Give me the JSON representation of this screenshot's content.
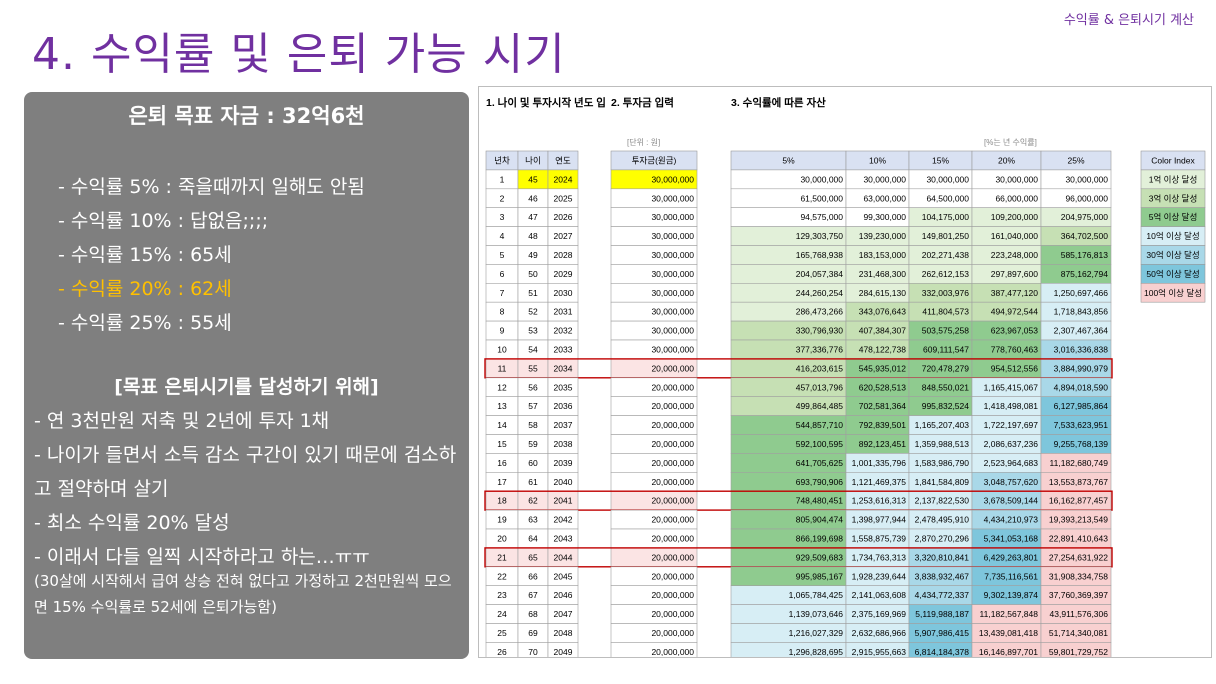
{
  "header_label": "수익률 & 은퇴시기 계산",
  "title": "4. 수익률 및 은퇴 가능 시기",
  "panel": {
    "goal": "은퇴 목표 자금 : 32억6천",
    "rates": [
      {
        "text": "- 수익률   5% : 죽을때까지 일해도 안됨",
        "highlight": false
      },
      {
        "text": "- 수익률 10% : 답없음;;;;",
        "highlight": false
      },
      {
        "text": "- 수익률 15% : 65세",
        "highlight": false
      },
      {
        "text": "- 수익률 20% : 62세",
        "highlight": true
      },
      {
        "text": "- 수익률 25% : 55세",
        "highlight": false
      }
    ],
    "section_title": "[목표 은퇴시기를 달성하기 위해]",
    "bullets": [
      "- 연 3천만원 저축 및 2년에 투자 1채",
      "- 나이가 들면서 소득 감소 구간이 있기 때문에 검소하고 절약하며 살기",
      "- 최소 수익률 20% 달성",
      "-    이래서 다들 일찍 시작하라고 하는…ㅠㅠ"
    ],
    "note": "(30살에 시작해서 급여 상승 전혀 없다고 가정하고 2천만원씩 모으면 15% 수익률로 52세에 은퇴가능함)"
  },
  "sheet": {
    "sec1": "1. 나이 및 투자시작 년도 입",
    "sec2": "2. 투자금 입력",
    "sec3": "3. 수익률에 따른 자산",
    "unit_won": "[단위 : 원]",
    "unit_rate": "[%는 년 수익률]",
    "headers": {
      "year_no": "년차",
      "age": "나이",
      "year": "연도",
      "invest": "투자금(원금)"
    },
    "rates": [
      "5%",
      "10%",
      "15%",
      "20%",
      "25%"
    ],
    "rows": [
      [
        1,
        45,
        2024,
        "30,000,000",
        "30,000,000",
        "30,000,000",
        "30,000,000",
        "30,000,000",
        "30,000,000"
      ],
      [
        2,
        46,
        2025,
        "30,000,000",
        "61,500,000",
        "63,000,000",
        "64,500,000",
        "66,000,000",
        "96,000,000"
      ],
      [
        3,
        47,
        2026,
        "30,000,000",
        "94,575,000",
        "99,300,000",
        "104,175,000",
        "109,200,000",
        "204,975,000"
      ],
      [
        4,
        48,
        2027,
        "30,000,000",
        "129,303,750",
        "139,230,000",
        "149,801,250",
        "161,040,000",
        "364,702,500"
      ],
      [
        5,
        49,
        2028,
        "30,000,000",
        "165,768,938",
        "183,153,000",
        "202,271,438",
        "223,248,000",
        "585,176,813"
      ],
      [
        6,
        50,
        2029,
        "30,000,000",
        "204,057,384",
        "231,468,300",
        "262,612,153",
        "297,897,600",
        "875,162,794"
      ],
      [
        7,
        51,
        2030,
        "30,000,000",
        "244,260,254",
        "284,615,130",
        "332,003,976",
        "387,477,120",
        "1,250,697,466"
      ],
      [
        8,
        52,
        2031,
        "30,000,000",
        "286,473,266",
        "343,076,643",
        "411,804,573",
        "494,972,544",
        "1,718,843,856"
      ],
      [
        9,
        53,
        2032,
        "30,000,000",
        "330,796,930",
        "407,384,307",
        "503,575,258",
        "623,967,053",
        "2,307,467,364"
      ],
      [
        10,
        54,
        2033,
        "30,000,000",
        "377,336,776",
        "478,122,738",
        "609,111,547",
        "778,760,463",
        "3,016,336,838"
      ],
      [
        11,
        55,
        2034,
        "20,000,000",
        "416,203,615",
        "545,935,012",
        "720,478,279",
        "954,512,556",
        "3,884,990,979"
      ],
      [
        12,
        56,
        2035,
        "20,000,000",
        "457,013,796",
        "620,528,513",
        "848,550,021",
        "1,165,415,067",
        "4,894,018,590"
      ],
      [
        13,
        57,
        2036,
        "20,000,000",
        "499,864,485",
        "702,581,364",
        "995,832,524",
        "1,418,498,081",
        "6,127,985,864"
      ],
      [
        14,
        58,
        2037,
        "20,000,000",
        "544,857,710",
        "792,839,501",
        "1,165,207,403",
        "1,722,197,697",
        "7,533,623,951"
      ],
      [
        15,
        59,
        2038,
        "20,000,000",
        "592,100,595",
        "892,123,451",
        "1,359,988,513",
        "2,086,637,236",
        "9,255,768,139"
      ],
      [
        16,
        60,
        2039,
        "20,000,000",
        "641,705,625",
        "1,001,335,796",
        "1,583,986,790",
        "2,523,964,683",
        "11,182,680,749"
      ],
      [
        17,
        61,
        2040,
        "20,000,000",
        "693,790,906",
        "1,121,469,375",
        "1,841,584,809",
        "3,048,757,620",
        "13,553,873,767"
      ],
      [
        18,
        62,
        2041,
        "20,000,000",
        "748,480,451",
        "1,253,616,313",
        "2,137,822,530",
        "3,678,509,144",
        "16,162,877,457"
      ],
      [
        19,
        63,
        2042,
        "20,000,000",
        "805,904,474",
        "1,398,977,944",
        "2,478,495,910",
        "4,434,210,973",
        "19,393,213,549"
      ],
      [
        20,
        64,
        2043,
        "20,000,000",
        "866,199,698",
        "1,558,875,739",
        "2,870,270,296",
        "5,341,053,168",
        "22,891,410,643"
      ],
      [
        21,
        65,
        2044,
        "20,000,000",
        "929,509,683",
        "1,734,763,313",
        "3,320,810,841",
        "6,429,263,801",
        "27,254,631,922"
      ],
      [
        22,
        66,
        2045,
        "20,000,000",
        "995,985,167",
        "1,928,239,644",
        "3,838,932,467",
        "7,735,116,561",
        "31,908,334,758"
      ],
      [
        23,
        67,
        2046,
        "20,000,000",
        "1,065,784,425",
        "2,141,063,608",
        "4,434,772,337",
        "9,302,139,874",
        "37,760,369,397"
      ],
      [
        24,
        68,
        2047,
        "20,000,000",
        "1,139,073,646",
        "2,375,169,969",
        "5,119,988,187",
        "11,182,567,848",
        "43,911,576,306"
      ],
      [
        25,
        69,
        2048,
        "20,000,000",
        "1,216,027,329",
        "2,632,686,966",
        "5,907,986,415",
        "13,439,081,418",
        "51,714,340,081"
      ],
      [
        26,
        70,
        2049,
        "20,000,000",
        "1,296,828,695",
        "2,915,955,663",
        "6,814,184,378",
        "16,146,897,701",
        "59,801,729,752"
      ]
    ],
    "highlight_years": [
      11,
      18,
      21
    ],
    "legend_title": "Color Index",
    "legend": [
      {
        "label": "1억 이상 달성",
        "color": "#e2f0d9"
      },
      {
        "label": "3억 이상 달성",
        "color": "#c6e0b4"
      },
      {
        "label": "5억 이상 달성",
        "color": "#8fcb8f"
      },
      {
        "label": "10억 이상 달성",
        "color": "#d7eef5"
      },
      {
        "label": "30억 이상 달성",
        "color": "#a9d8e8"
      },
      {
        "label": "50억 이상 달성",
        "color": "#7ec6dc"
      },
      {
        "label": "100억 이상 달성",
        "color": "#f8d0d0"
      }
    ],
    "colors": {
      "input_yellow": "#ffff00",
      "header_blue": "#d9e1f2",
      "highlight_border": "#c00000",
      "highlight_fill": "#fbe4e4"
    }
  }
}
